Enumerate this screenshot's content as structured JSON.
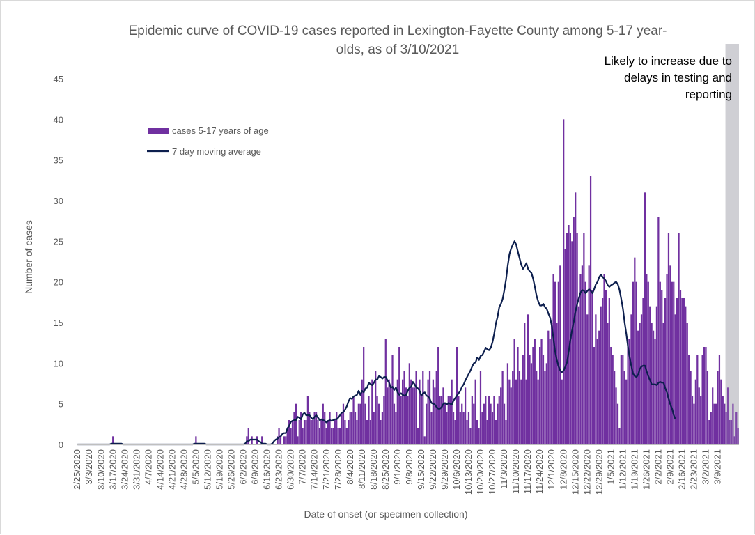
{
  "colors": {
    "bars": "#7030a0",
    "line": "#0d1f4e",
    "shade": "#cfcfd4",
    "axis": "#bfbfbf",
    "text": "#595959"
  },
  "chart_data": {
    "type": "bar",
    "title": [
      "Epidemic curve of COVID-19 cases reported in Lexington-Fayette County among 5-17 year-",
      "olds, as of 3/10/2021"
    ],
    "xlabel": "Date of onset (or specimen collection)",
    "ylabel": "Number of cases",
    "ylim": [
      0,
      45
    ],
    "yticks": [
      0,
      5,
      10,
      15,
      20,
      25,
      30,
      35,
      40,
      45
    ],
    "grid": false,
    "legend_placement": "top-left",
    "x_start": "2/25/2020",
    "x_end": "3/10/2021",
    "x_tick_labels": [
      "2/25/2020",
      "3/3/2020",
      "3/10/2020",
      "3/17/2020",
      "3/24/2020",
      "3/31/2020",
      "4/7/2020",
      "4/14/2020",
      "4/21/2020",
      "4/28/2020",
      "5/5/2020",
      "5/12/2020",
      "5/19/2020",
      "5/26/2020",
      "6/2/2020",
      "6/9/2020",
      "6/16/2020",
      "6/23/2020",
      "6/30/2020",
      "7/7/2020",
      "7/14/2020",
      "7/21/2020",
      "7/28/2020",
      "8/4/2020",
      "8/11/2020",
      "8/18/2020",
      "8/25/2020",
      "9/1/2020",
      "9/8/2020",
      "9/15/2020",
      "9/22/2020",
      "9/29/2020",
      "10/6/2020",
      "10/13/2020",
      "10/20/2020",
      "10/27/2020",
      "11/3/2020",
      "11/10/2020",
      "11/17/2020",
      "11/24/2020",
      "12/1/2020",
      "12/8/2020",
      "12/15/2020",
      "12/22/2020",
      "12/29/2020",
      "1/5/2021",
      "1/12/2021",
      "1/19/2021",
      "1/26/2021",
      "2/2/2021",
      "2/9/2021",
      "2/16/2021",
      "2/23/2021",
      "3/2/2021",
      "3/9/2021"
    ],
    "series": [
      {
        "name": "cases 5-17 years of age",
        "type": "bar",
        "values": [
          0,
          0,
          0,
          0,
          0,
          0,
          0,
          0,
          0,
          0,
          0,
          0,
          0,
          0,
          0,
          0,
          0,
          0,
          0,
          0,
          0,
          1,
          0,
          0,
          0,
          0,
          0,
          0,
          0,
          0,
          0,
          0,
          0,
          0,
          0,
          0,
          0,
          0,
          0,
          0,
          0,
          0,
          0,
          0,
          0,
          0,
          0,
          0,
          0,
          0,
          0,
          0,
          0,
          0,
          0,
          0,
          0,
          0,
          0,
          0,
          0,
          0,
          0,
          0,
          0,
          0,
          0,
          0,
          0,
          0,
          1,
          0,
          0,
          0,
          0,
          0,
          0,
          0,
          0,
          0,
          0,
          0,
          0,
          0,
          0,
          0,
          0,
          0,
          0,
          0,
          0,
          0,
          0,
          0,
          0,
          0,
          0,
          0,
          0,
          0,
          1,
          2,
          0,
          1,
          0,
          0,
          1,
          0,
          0,
          1,
          0,
          0,
          0,
          0,
          0,
          0,
          0,
          0,
          1,
          2,
          1,
          0,
          1,
          1,
          2,
          3,
          2,
          3,
          4,
          5,
          1,
          3,
          4,
          2,
          3,
          3,
          6,
          4,
          3,
          3,
          4,
          4,
          3,
          2,
          3,
          5,
          4,
          2,
          3,
          4,
          2,
          2,
          3,
          4,
          2,
          2,
          4,
          5,
          3,
          2,
          3,
          4,
          4,
          6,
          4,
          3,
          5,
          5,
          8,
          12,
          5,
          3,
          6,
          3,
          8,
          4,
          9,
          6,
          5,
          3,
          4,
          6,
          13,
          7,
          8,
          7,
          11,
          5,
          4,
          8,
          12,
          6,
          8,
          9,
          7,
          6,
          10,
          8,
          7,
          7,
          9,
          2,
          8,
          6,
          9,
          1,
          5,
          8,
          9,
          4,
          8,
          7,
          9,
          12,
          6,
          6,
          7,
          5,
          4,
          6,
          6,
          8,
          4,
          3,
          12,
          6,
          4,
          5,
          4,
          7,
          3,
          4,
          2,
          6,
          5,
          8,
          3,
          2,
          9,
          4,
          5,
          6,
          3,
          6,
          5,
          4,
          6,
          3,
          5,
          6,
          7,
          9,
          5,
          3,
          10,
          8,
          7,
          9,
          13,
          8,
          12,
          9,
          8,
          11,
          15,
          8,
          16,
          11,
          10,
          12,
          13,
          9,
          8,
          12,
          13,
          11,
          9,
          10,
          14,
          13,
          15,
          21,
          20,
          15,
          20,
          22,
          8,
          40,
          24,
          26,
          27,
          26,
          25,
          28,
          31,
          26,
          17,
          21,
          22,
          26,
          20,
          16,
          22,
          33,
          19,
          12,
          16,
          13,
          14,
          17,
          18,
          21,
          19,
          15,
          18,
          12,
          11,
          9,
          7,
          5,
          2,
          11,
          11,
          9,
          8,
          13,
          13,
          16,
          20,
          23,
          20,
          14,
          15,
          16,
          18,
          31,
          21,
          20,
          17,
          15,
          14,
          13,
          17,
          28,
          20,
          19,
          15,
          18,
          21,
          26,
          22,
          20,
          20,
          16,
          18,
          26,
          19,
          18,
          18,
          17,
          15,
          11,
          9,
          6,
          5,
          8,
          11,
          7,
          6,
          11,
          12,
          12,
          9,
          3,
          4,
          7,
          5,
          5,
          9,
          11,
          8,
          6,
          5,
          4,
          7,
          3,
          3,
          5,
          1,
          4,
          2
        ]
      },
      {
        "name": "7 day moving average",
        "type": "line",
        "values": [
          0,
          0,
          0,
          0,
          0,
          0,
          0,
          0,
          0,
          0,
          0,
          0,
          0,
          0,
          0,
          0,
          0,
          0,
          0,
          0,
          0.1,
          0.1,
          0.1,
          0.1,
          0.1,
          0.1,
          0.1,
          0,
          0,
          0,
          0,
          0,
          0,
          0,
          0,
          0,
          0,
          0,
          0,
          0,
          0,
          0,
          0,
          0,
          0,
          0,
          0,
          0,
          0,
          0,
          0,
          0,
          0,
          0,
          0,
          0,
          0,
          0,
          0,
          0,
          0,
          0,
          0,
          0,
          0,
          0,
          0,
          0,
          0,
          0.1,
          0.1,
          0.1,
          0.1,
          0.1,
          0.1,
          0.1,
          0,
          0,
          0,
          0,
          0,
          0,
          0,
          0,
          0,
          0,
          0,
          0,
          0,
          0,
          0,
          0,
          0,
          0,
          0,
          0,
          0,
          0,
          0,
          0.1,
          0.4,
          0.4,
          0.6,
          0.6,
          0.6,
          0.6,
          0.6,
          0.4,
          0.3,
          0.1,
          0.1,
          0.1,
          0,
          0,
          0,
          0.1,
          0.4,
          0.6,
          0.7,
          0.9,
          1.0,
          1.3,
          1.4,
          1.4,
          2.0,
          2.3,
          2.8,
          2.9,
          3.0,
          3.0,
          3.4,
          3.3,
          3.1,
          3.7,
          3.9,
          3.6,
          3.6,
          3.6,
          3.3,
          3.1,
          3.4,
          3.6,
          3.3,
          3.0,
          3.1,
          3.0,
          2.9,
          2.7,
          2.9,
          3.0,
          2.9,
          3.0,
          3.1,
          3.1,
          3.3,
          3.6,
          3.9,
          4.0,
          4.3,
          4.7,
          5.3,
          5.7,
          5.6,
          5.9,
          6.0,
          6.1,
          6.6,
          6.1,
          6.6,
          6.4,
          6.9,
          7.0,
          7.6,
          7.4,
          7.3,
          7.6,
          8.0,
          8.0,
          8.4,
          8.3,
          8.1,
          8.3,
          8.3,
          7.9,
          7.6,
          7.0,
          7.1,
          6.7,
          7.0,
          6.4,
          6.1,
          6.3,
          6.1,
          6.0,
          6.1,
          6.6,
          7.0,
          7.1,
          7.7,
          7.4,
          7.0,
          6.9,
          6.6,
          6.0,
          6.3,
          6.4,
          6.0,
          5.9,
          5.6,
          5.1,
          5.0,
          4.9,
          4.6,
          4.4,
          4.4,
          4.6,
          5.0,
          5.1,
          4.9,
          5.1,
          5.0,
          4.9,
          5.4,
          5.7,
          6.0,
          6.3,
          6.6,
          7.1,
          7.4,
          7.9,
          8.3,
          8.7,
          9.1,
          9.6,
          10.0,
          10.1,
          10.7,
          10.4,
          10.9,
          11.0,
          11.4,
          11.9,
          11.7,
          11.6,
          11.9,
          12.6,
          13.6,
          14.9,
          15.7,
          16.9,
          17.3,
          17.9,
          19.0,
          20.3,
          22.0,
          23.4,
          24.1,
          24.6,
          25.0,
          24.6,
          23.7,
          22.9,
          22.1,
          21.6,
          21.9,
          22.3,
          21.6,
          21.3,
          21.1,
          20.4,
          19.4,
          18.3,
          17.6,
          17.1,
          17.1,
          17.3,
          16.9,
          16.7,
          16.1,
          15.6,
          14.6,
          13.0,
          11.4,
          10.4,
          9.6,
          9.1,
          8.9,
          9.1,
          9.6,
          10.1,
          11.4,
          12.9,
          14.1,
          15.1,
          16.4,
          17.3,
          18.0,
          18.7,
          19.0,
          18.9,
          18.6,
          18.9,
          19.1,
          18.9,
          18.6,
          19.1,
          19.7,
          20.0,
          20.6,
          20.9,
          20.6,
          20.4,
          20.1,
          19.6,
          19.4,
          19.6,
          19.7,
          19.9,
          20.0,
          19.7,
          19.0,
          17.9,
          16.7,
          15.0,
          13.6,
          12.0,
          10.7,
          9.6,
          8.7,
          8.4,
          8.3,
          8.6,
          9.3,
          9.6,
          9.7,
          9.7,
          9.0,
          8.4,
          7.9,
          7.4,
          7.4,
          7.4,
          7.3,
          7.6,
          7.7,
          7.6,
          7.6,
          6.9,
          6.4,
          5.6,
          4.9,
          4.4,
          3.6,
          3.1
        ]
      }
    ],
    "annotations": [
      {
        "text": [
          "Likely to increase due to",
          "delays in testing and",
          "reporting"
        ],
        "region": "last 8 days shaded gray"
      }
    ]
  }
}
